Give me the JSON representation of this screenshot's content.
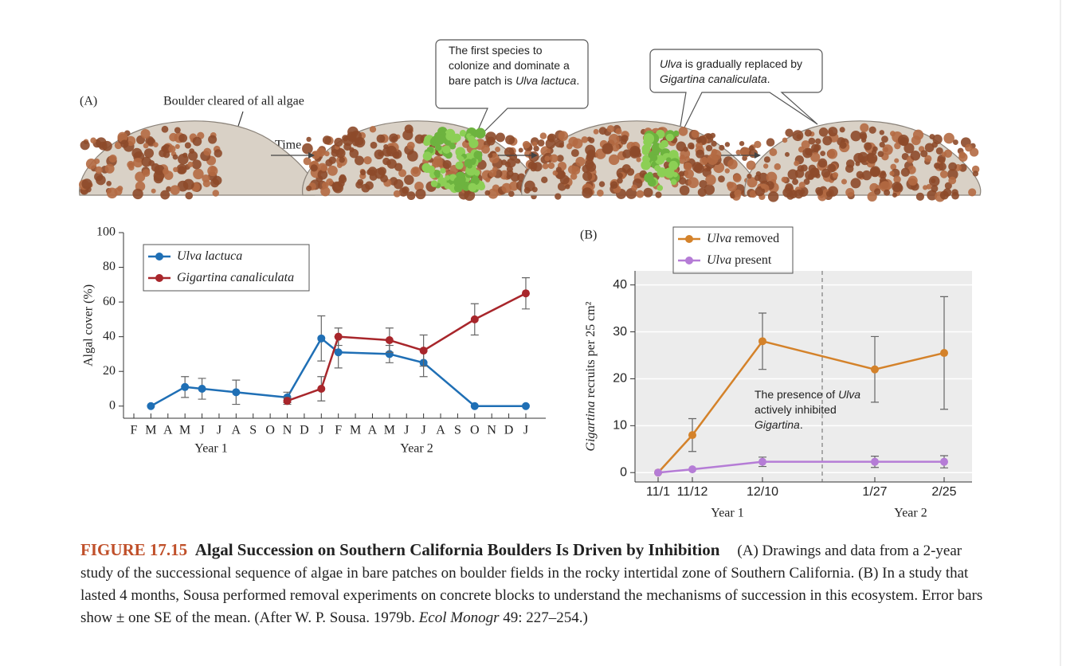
{
  "panel_a": {
    "label": "(A)",
    "pointer_label": "Boulder cleared of all algae",
    "arrow_label": "Time",
    "callouts": [
      [
        "The first species to colonize and dominate a bare patch is ",
        "Ulva lactuca",
        "."
      ],
      [
        "Ulva",
        " is gradually replaced by ",
        "Gigartina canaliculata",
        "."
      ]
    ]
  },
  "chart_data": [
    {
      "type": "line",
      "categories": [
        "F",
        "M",
        "A",
        "M",
        "J",
        "J",
        "A",
        "S",
        "O",
        "N",
        "D",
        "J",
        "F",
        "M",
        "A",
        "M",
        "J",
        "J",
        "A",
        "S",
        "O",
        "N",
        "D",
        "J"
      ],
      "group_labels": [
        "Year 1",
        "Year 2"
      ],
      "ylabel": "Algal cover (%)",
      "ylim": [
        -7,
        100
      ],
      "yticks": [
        0,
        20,
        40,
        60,
        80,
        100
      ],
      "legend": "upper left",
      "series": [
        {
          "name": "Ulva lactuca",
          "color": "#1f6fb5",
          "values": [
            null,
            0,
            null,
            11,
            10,
            null,
            8,
            null,
            null,
            5,
            null,
            39,
            31,
            null,
            null,
            30,
            null,
            25,
            null,
            null,
            0,
            null,
            null,
            0
          ],
          "errors": [
            null,
            null,
            null,
            6,
            6,
            null,
            7,
            null,
            null,
            3,
            null,
            13,
            9,
            null,
            null,
            5,
            null,
            8,
            null,
            null,
            null,
            null,
            null,
            null
          ]
        },
        {
          "name": "Gigartina canaliculata",
          "color": "#a8262b",
          "values": [
            null,
            null,
            null,
            null,
            null,
            null,
            null,
            null,
            null,
            3,
            null,
            10,
            40,
            null,
            null,
            38,
            null,
            32,
            null,
            null,
            50,
            null,
            null,
            65
          ],
          "errors": [
            null,
            null,
            null,
            null,
            null,
            null,
            null,
            null,
            null,
            2,
            null,
            7,
            5,
            null,
            null,
            7,
            null,
            9,
            null,
            null,
            9,
            null,
            null,
            9
          ]
        }
      ]
    },
    {
      "type": "line",
      "panel_label": "(B)",
      "categories": [
        "11/1",
        "11/12",
        "12/10",
        "1/27",
        "2/25"
      ],
      "group_labels": [
        "Year 1",
        "Year 2"
      ],
      "ylabel": "Gigartina recruits per 25 cm²",
      "ylim": [
        -2,
        43
      ],
      "yticks": [
        0,
        10,
        20,
        30,
        40
      ],
      "grid": true,
      "legend": "upper center",
      "annotation": [
        "The presence of ",
        "Ulva",
        " actively inhibited ",
        "Gigartina",
        "."
      ],
      "series": [
        {
          "name": "Ulva removed",
          "color": "#d4822a",
          "values": [
            0,
            8,
            28,
            22,
            25.5
          ],
          "errors": [
            null,
            3.5,
            6,
            7,
            12
          ]
        },
        {
          "name": "Ulva present",
          "color": "#b57cd6",
          "values": [
            0,
            0.7,
            2.3,
            2.3,
            2.3
          ],
          "errors": [
            null,
            null,
            1,
            1.2,
            1.3
          ]
        }
      ]
    }
  ],
  "caption": {
    "figure": "FIGURE 17.15",
    "title": "Algal Succession on Southern California Boulders Is Driven by Inhibition",
    "text": "(A) Drawings and data from a 2-year study of the successional sequence of algae in bare patches on boulder fields in the rocky intertidal zone of Southern California. (B) In a study that lasted 4 months, Sousa performed removal experiments on concrete blocks to understand the mechanisms of succession in this ecosystem. Error bars show ± one SE of the mean. (After W. P. Sousa. 1979b. ",
    "journal": "Ecol Monogr",
    "pages": " 49: 227–254.)"
  }
}
